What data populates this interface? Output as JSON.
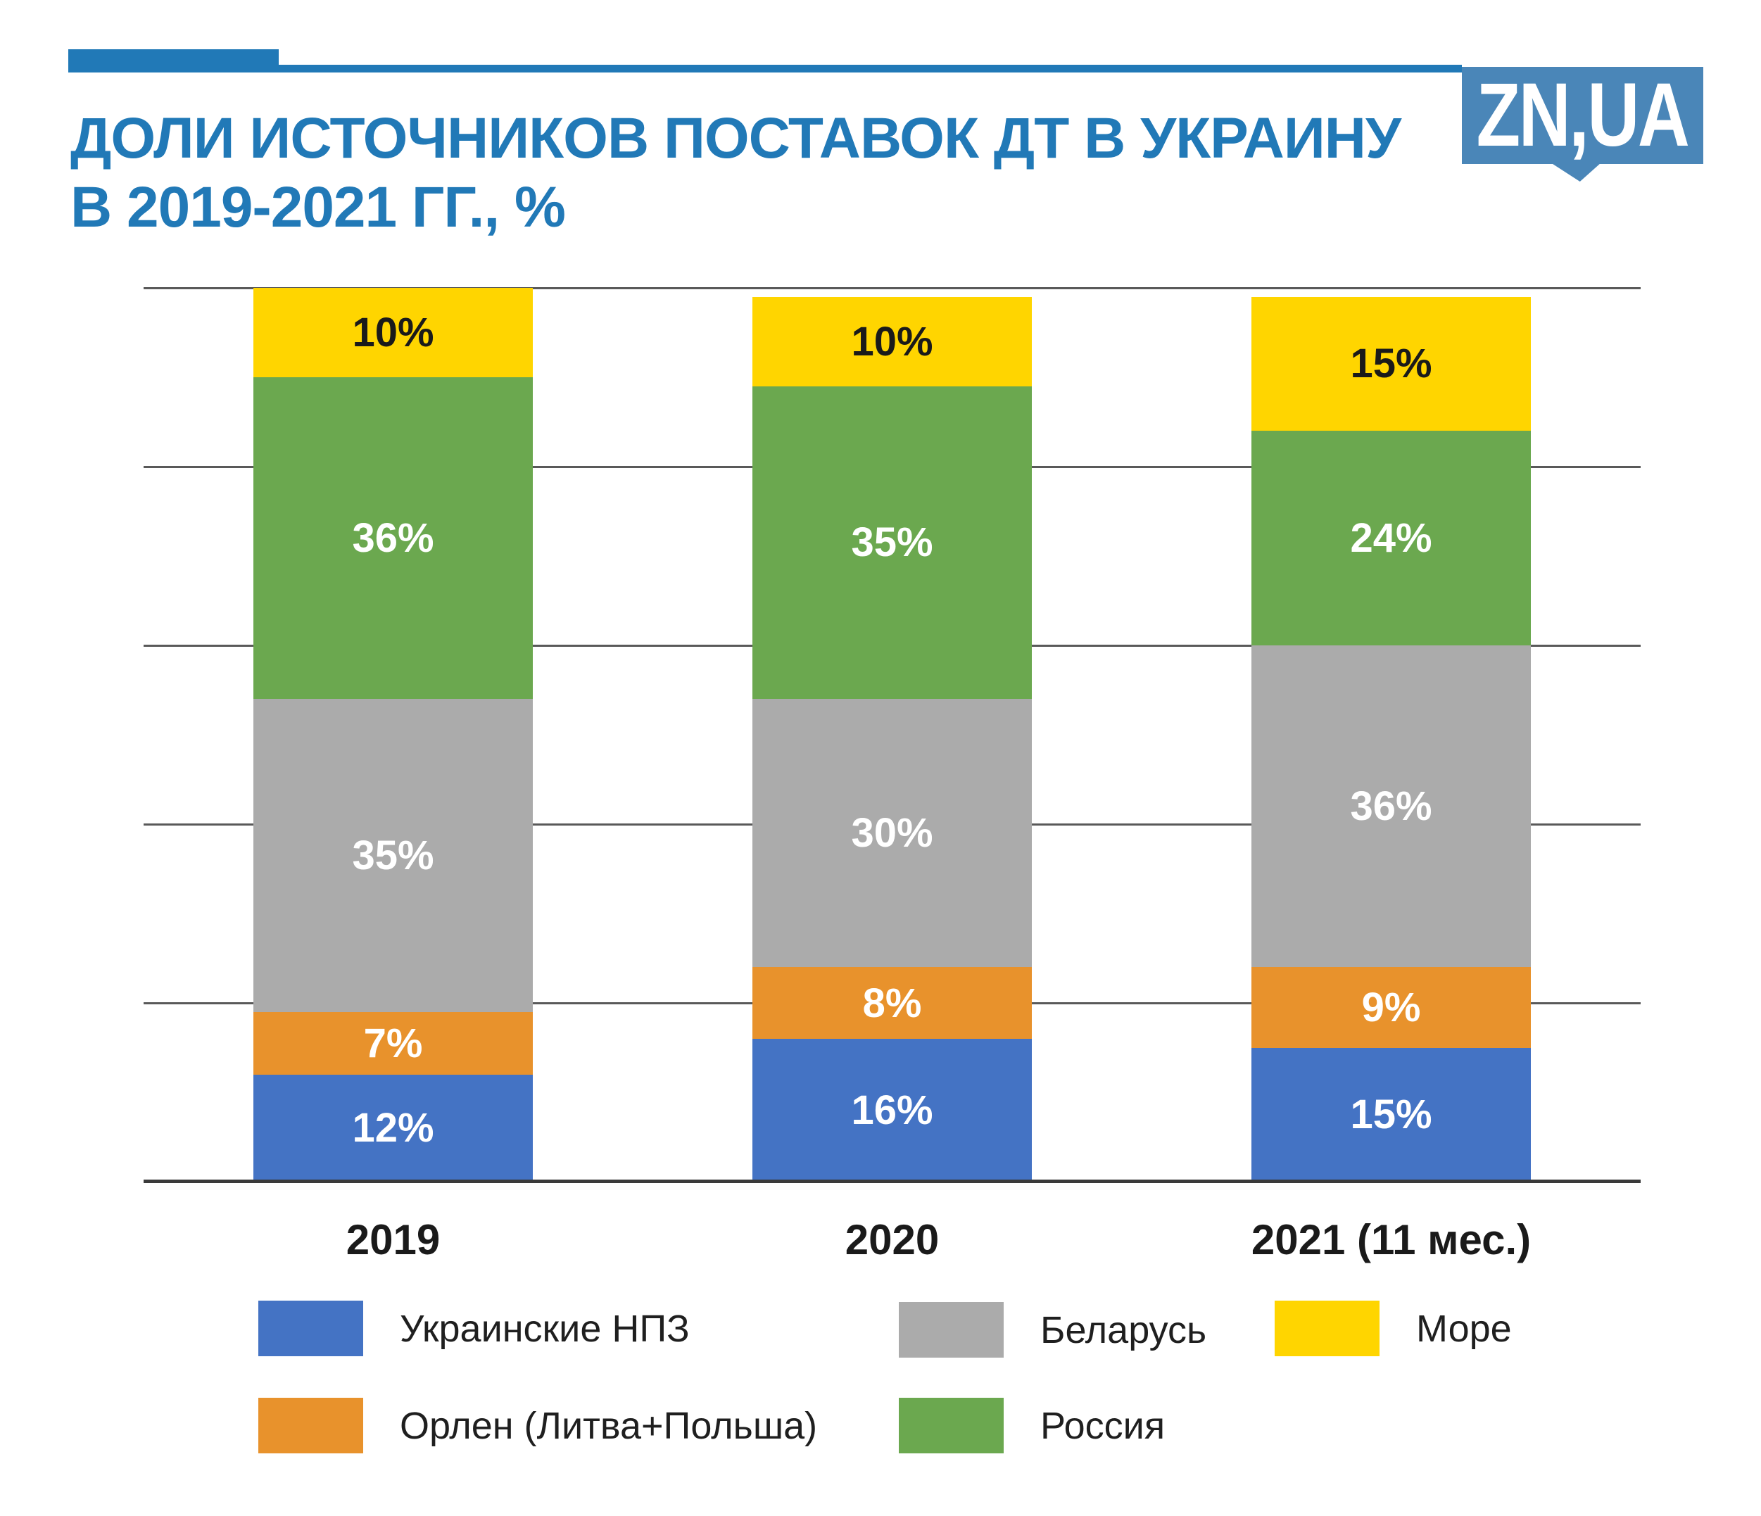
{
  "header": {
    "accent_color": "#2179B7",
    "title_line1": "ДОЛИ ИСТОЧНИКОВ ПОСТАВОК ДТ В УКРАИНУ",
    "title_line2": "В 2019-2021 ГГ., %",
    "title_color": "#2179B7",
    "logo_text": "ZN,UA",
    "logo_bg": "#4A86B8"
  },
  "chart_data": {
    "type": "bar",
    "stacked": true,
    "title": "Доли источников поставок ДТ в Украину в 2019-2021 гг., %",
    "categories": [
      "2019",
      "2020",
      "2021 (11 мес.)"
    ],
    "series": [
      {
        "name": "Украинские НПЗ",
        "color": "#4473C4",
        "label_color": "#ffffff",
        "values": [
          12,
          16,
          15
        ]
      },
      {
        "name": "Орлен (Литва+Польша)",
        "color": "#E8922C",
        "label_color": "#ffffff",
        "values": [
          7,
          8,
          9
        ]
      },
      {
        "name": "Беларусь",
        "color": "#ABABAB",
        "label_color": "#ffffff",
        "values": [
          35,
          30,
          36
        ]
      },
      {
        "name": "Россия",
        "color": "#6BA84F",
        "label_color": "#ffffff",
        "values": [
          36,
          35,
          24
        ]
      },
      {
        "name": "Море",
        "color": "#FFD500",
        "label_color": "#1a1a1a",
        "values": [
          10,
          10,
          15
        ]
      }
    ],
    "value_suffix": "%",
    "ylim": [
      0,
      100
    ],
    "gridline_interval": 20,
    "grid": true,
    "y_axis_labels": false,
    "legend_position": "bottom",
    "legend_slots_by_series_index": [
      0,
      1,
      2,
      3,
      4
    ]
  }
}
